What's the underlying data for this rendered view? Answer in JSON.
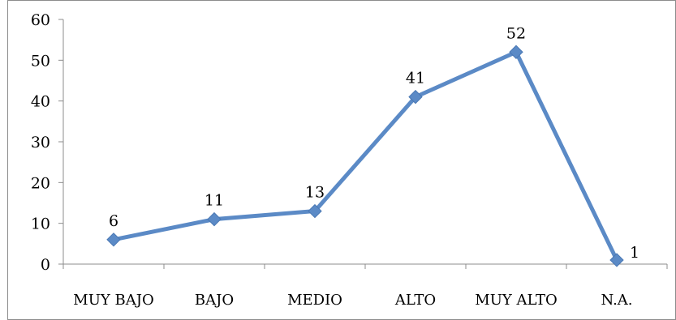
{
  "chart_data": {
    "type": "line",
    "categories": [
      "MUY BAJO",
      "BAJO",
      "MEDIO",
      "ALTO",
      "MUY ALTO",
      "N.A."
    ],
    "values": [
      6,
      11,
      13,
      41,
      52,
      1
    ],
    "data_labels": [
      "6",
      "11",
      "13",
      "41",
      "52",
      "1"
    ],
    "title": "",
    "xlabel": "",
    "ylabel": "",
    "ylim": [
      0,
      60
    ],
    "yticks": [
      0,
      10,
      20,
      30,
      40,
      50,
      60
    ],
    "ytick_labels": [
      "0",
      "10",
      "20",
      "30",
      "40",
      "50",
      "60"
    ],
    "grid": false,
    "legend": "none",
    "marker": "diamond",
    "line_color": "#5b8ac6",
    "marker_color": "#5b8ac6"
  }
}
